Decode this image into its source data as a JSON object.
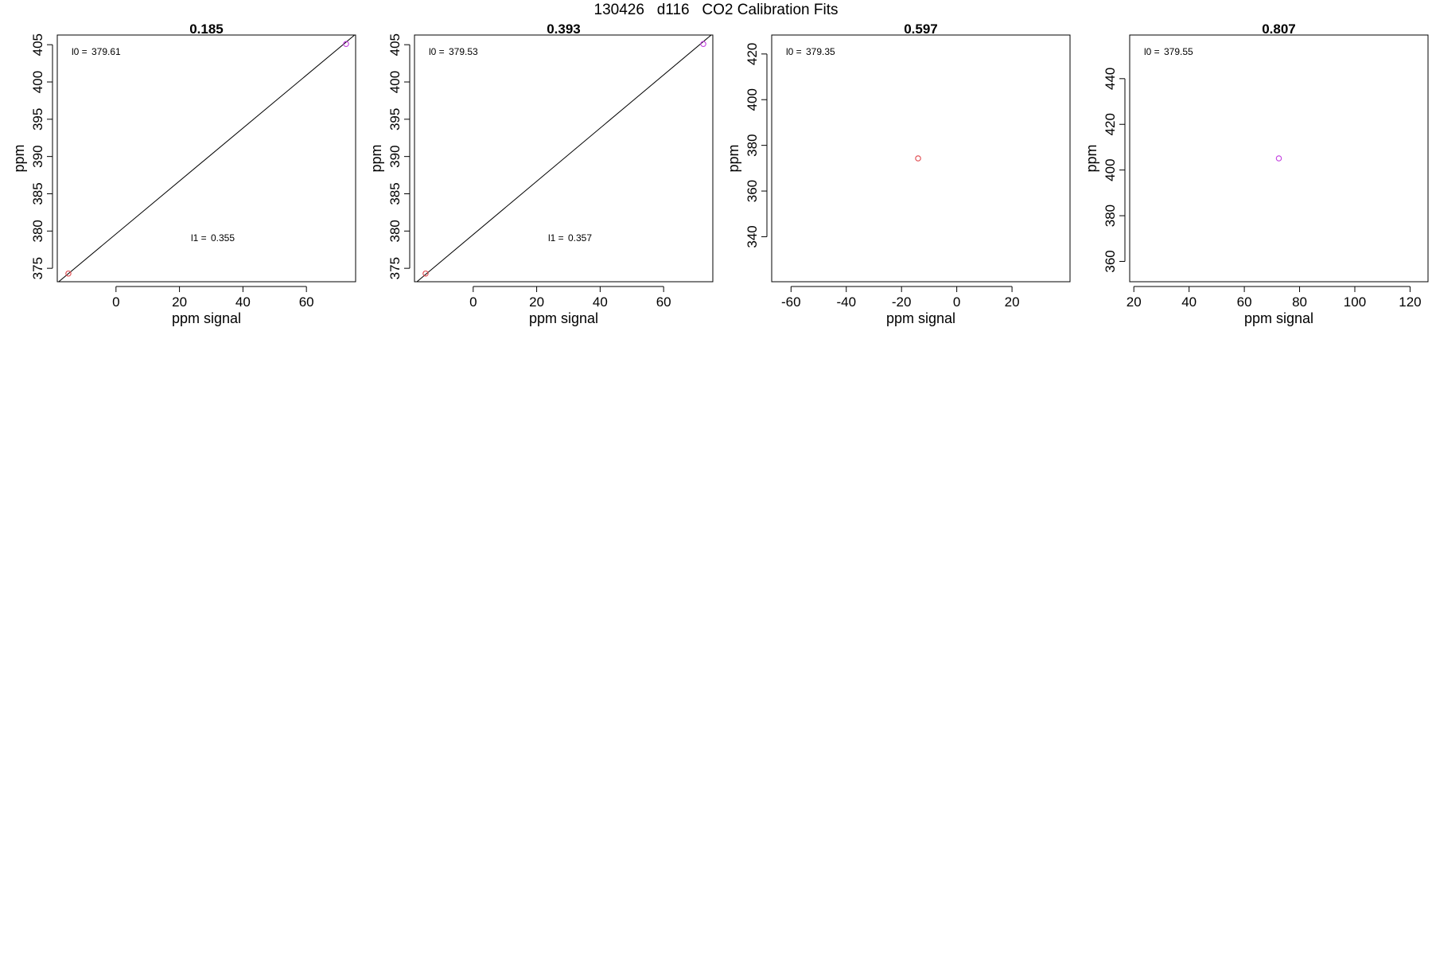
{
  "figure": {
    "title": "130426   d116   CO2 Calibration Fits"
  },
  "colors": {
    "low_point": "#e0474c",
    "high_point": "#c33fe0",
    "fit_line": "#000000",
    "frame": "#000000"
  },
  "chart_data": [
    {
      "type": "scatter",
      "title": "0.185",
      "xlabel": "ppm signal",
      "ylabel": "ppm",
      "xlim": [
        -18.5,
        75.5
      ],
      "ylim": [
        373.2,
        406.3
      ],
      "xticks": [
        0,
        20,
        40,
        60
      ],
      "yticks": [
        375,
        380,
        385,
        390,
        395,
        400,
        405
      ],
      "points": [
        {
          "x": -15,
          "y": 374.3,
          "color": "low_point"
        },
        {
          "x": 72.5,
          "y": 405.1,
          "color": "high_point"
        }
      ],
      "fit_line": {
        "intercept": 379.61,
        "slope": 0.355
      },
      "annotations": [
        {
          "label": "l0 =",
          "value": "379.61",
          "corner": "top-left"
        },
        {
          "label": "l1 =",
          "value": "0.355",
          "corner": "lower-middle"
        }
      ]
    },
    {
      "type": "scatter",
      "title": "0.393",
      "xlabel": "ppm signal",
      "ylabel": "ppm",
      "xlim": [
        -18.5,
        75.5
      ],
      "ylim": [
        373.2,
        406.3
      ],
      "xticks": [
        0,
        20,
        40,
        60
      ],
      "yticks": [
        375,
        380,
        385,
        390,
        395,
        400,
        405
      ],
      "points": [
        {
          "x": -15,
          "y": 374.3,
          "color": "low_point"
        },
        {
          "x": 72.5,
          "y": 405.1,
          "color": "high_point"
        }
      ],
      "fit_line": {
        "intercept": 379.53,
        "slope": 0.357
      },
      "annotations": [
        {
          "label": "l0 =",
          "value": "379.53",
          "corner": "top-left"
        },
        {
          "label": "l1 =",
          "value": "0.357",
          "corner": "lower-middle"
        }
      ]
    },
    {
      "type": "scatter",
      "title": "0.597",
      "xlabel": "ppm signal",
      "ylabel": "ppm",
      "xlim": [
        -67,
        41
      ],
      "ylim": [
        320.3,
        428.3
      ],
      "xticks": [
        -60,
        -40,
        -20,
        0,
        20
      ],
      "yticks": [
        340,
        360,
        380,
        400,
        420
      ],
      "points": [
        {
          "x": -14,
          "y": 374.3,
          "color": "low_point"
        }
      ],
      "annotations": [
        {
          "label": "l0 =",
          "value": "379.35",
          "corner": "top-left"
        }
      ]
    },
    {
      "type": "scatter",
      "title": "0.807",
      "xlabel": "ppm signal",
      "ylabel": "ppm",
      "xlim": [
        18.5,
        126.5
      ],
      "ylim": [
        351.1,
        459.1
      ],
      "xticks": [
        20,
        40,
        60,
        80,
        100,
        120
      ],
      "yticks": [
        360,
        380,
        400,
        420,
        440
      ],
      "points": [
        {
          "x": 72.5,
          "y": 405.1,
          "color": "high_point"
        }
      ],
      "annotations": [
        {
          "label": "l0 =",
          "value": "379.55",
          "corner": "top-left"
        }
      ]
    }
  ]
}
